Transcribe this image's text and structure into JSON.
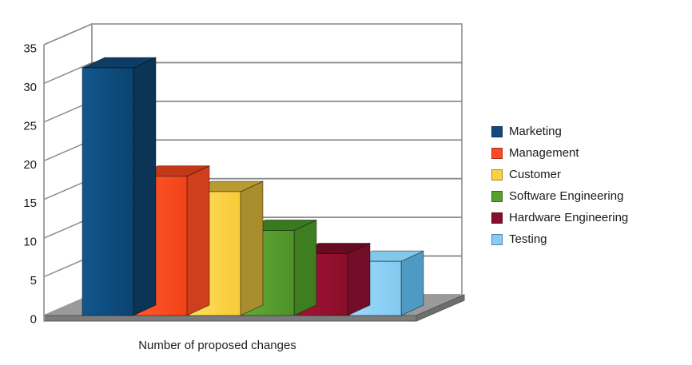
{
  "chart_data": {
    "type": "bar",
    "projection": "3d",
    "title": "",
    "xlabel": "Number of proposed changes",
    "ylabel": "",
    "ylim": [
      0,
      35
    ],
    "yticks": [
      0,
      5,
      10,
      15,
      20,
      25,
      30,
      35
    ],
    "grid": true,
    "legend_position": "right",
    "background_color": "#ffffff",
    "wall_color": "#ffffff",
    "grid_line_color": "#8c8c8c",
    "wall_border_color": "#9a9a9a",
    "floor_colors": {
      "top": "#9a9a9a",
      "front": "#7b7b7b",
      "side": "#6e6e6e",
      "edge": "#555555"
    },
    "categories": [
      "Marketing",
      "Management",
      "Customer",
      "Software Engineering",
      "Hardware Engineering",
      "Testing"
    ],
    "values": [
      32,
      18,
      16,
      11,
      8,
      7
    ],
    "series": [
      {
        "name": "Marketing",
        "value": 32,
        "color": "#17477f",
        "faces": {
          "front_light": "#11578e",
          "front_dark": "#0b4370",
          "top": "#0d3c64",
          "side": "#0b3457"
        }
      },
      {
        "name": "Management",
        "value": 18,
        "color": "#ff4a24",
        "faces": {
          "front_light": "#ff5a2b",
          "front_dark": "#f04218",
          "top": "#c23919",
          "side": "#cf3f1d"
        }
      },
      {
        "name": "Customer",
        "value": 16,
        "color": "#fcd13f",
        "faces": {
          "front_light": "#ffdf5c",
          "front_dark": "#f7ca38",
          "top": "#b89b30",
          "side": "#a98c2b"
        }
      },
      {
        "name": "Software Engineering",
        "value": 11,
        "color": "#57a02e",
        "faces": {
          "front_light": "#63aa3a",
          "front_dark": "#4d9127",
          "top": "#3a7a1e",
          "side": "#3f7d21"
        }
      },
      {
        "name": "Hardware Engineering",
        "value": 8,
        "color": "#870e2c",
        "faces": {
          "front_light": "#a31434",
          "front_dark": "#8a0e2a",
          "top": "#670b21",
          "side": "#740d27"
        }
      },
      {
        "name": "Testing",
        "value": 7,
        "color": "#85cdf5",
        "faces": {
          "front_light": "#9cdafa",
          "front_dark": "#82c9ef",
          "top": "#82c8ea",
          "side": "#4e9ac4"
        }
      }
    ]
  }
}
